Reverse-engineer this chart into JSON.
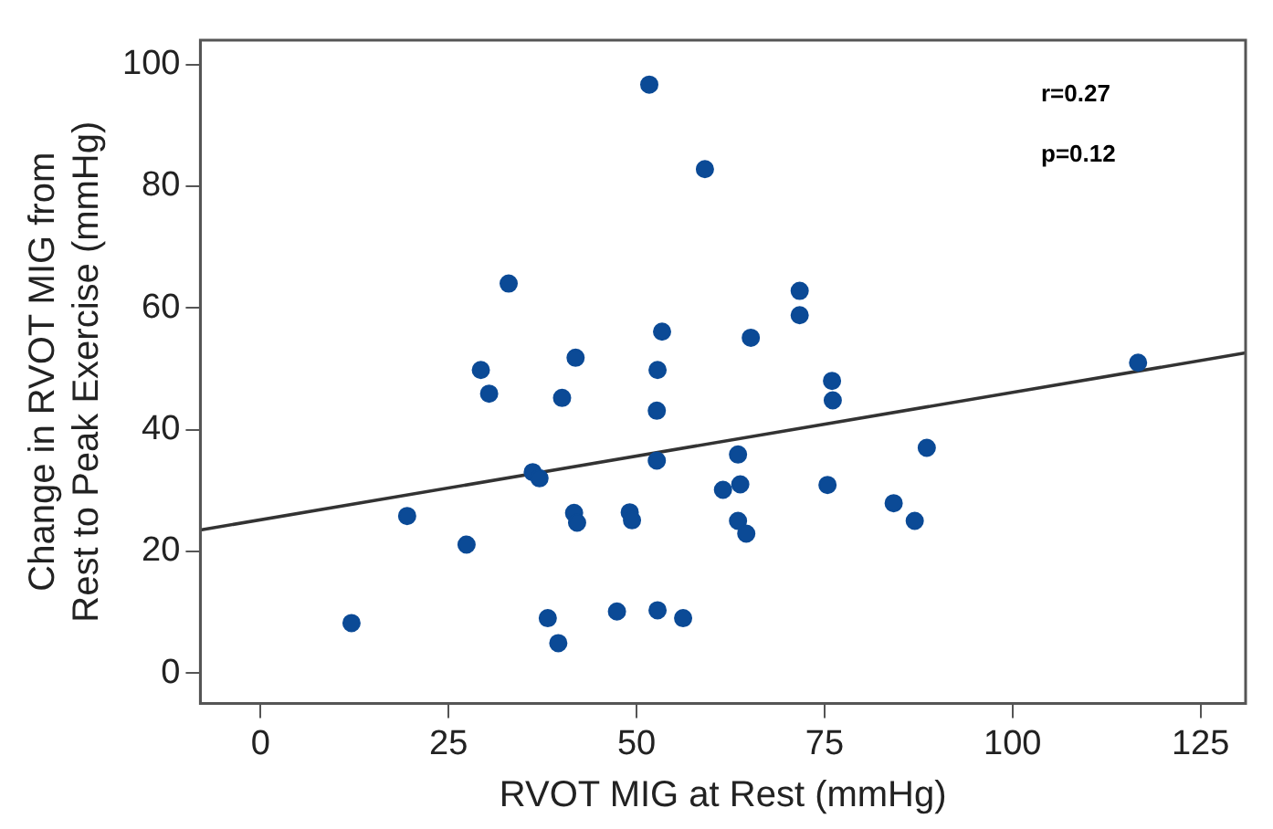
{
  "chart_data": {
    "type": "scatter",
    "xlabel": "RVOT MIG at Rest (mmHg)",
    "ylabel": "Change in RVOT MIG from\nRest to Peak Exercise (mmHg)",
    "xlim": [
      -8,
      131
    ],
    "xticks": [
      0,
      25,
      50,
      75,
      100,
      125
    ],
    "ylim": [
      -5,
      104
    ],
    "yticks": [
      0,
      20,
      40,
      60,
      80,
      100
    ],
    "grid": false,
    "marker": "circle",
    "annotations": [
      "r=0.27",
      "p=0.12"
    ],
    "series": [
      {
        "color": "#0b4a96",
        "x": [
          51.7,
          59.1,
          33.0,
          53.4,
          41.9,
          29.3,
          52.8,
          30.4,
          40.1,
          52.7,
          52.7,
          36.2,
          37.1,
          19.5,
          41.7,
          42.1,
          49.1,
          49.4,
          27.4,
          12.1,
          38.2,
          39.6,
          47.4,
          52.8,
          56.2,
          71.7,
          71.7,
          65.2,
          76.0,
          76.1,
          116.7,
          63.5,
          61.5,
          63.8,
          63.5,
          64.6,
          75.4,
          84.2,
          87.0,
          88.6
        ],
        "values": [
          96.7,
          82.8,
          64.0,
          56.1,
          51.8,
          49.8,
          49.8,
          45.9,
          45.2,
          43.1,
          34.9,
          33.0,
          32.0,
          25.8,
          26.3,
          24.7,
          26.4,
          25.1,
          21.1,
          8.2,
          9.0,
          4.9,
          10.1,
          10.3,
          9.0,
          62.8,
          58.8,
          55.1,
          48.0,
          44.8,
          51.0,
          35.9,
          30.1,
          31.0,
          25.0,
          22.9,
          30.9,
          27.9,
          25.0,
          37.0
        ]
      },
      {
        "type": "line",
        "color": "#333333",
        "x": [
          -8,
          131
        ],
        "values": [
          23.5,
          52.6
        ],
        "marker": "none"
      }
    ]
  }
}
